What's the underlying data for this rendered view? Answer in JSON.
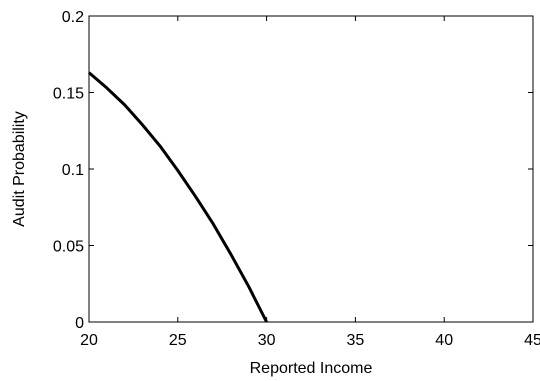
{
  "chart_data": {
    "type": "line",
    "title": "",
    "xlabel": "Reported Income",
    "ylabel": "Audit Probability",
    "xlim": [
      20,
      45
    ],
    "ylim": [
      0,
      0.2
    ],
    "xticks": [
      20,
      25,
      30,
      35,
      40,
      45
    ],
    "yticks": [
      0,
      0.05,
      0.1,
      0.15,
      0.2
    ],
    "xtick_labels": [
      "20",
      "25",
      "30",
      "35",
      "40",
      "45"
    ],
    "ytick_labels": [
      "0",
      "0.05",
      "0.1",
      "0.15",
      "0.2"
    ],
    "grid": false,
    "legend": "none",
    "series": [
      {
        "color": "#000000",
        "x": [
          20,
          21,
          22,
          23,
          24,
          25,
          26,
          27,
          28,
          29,
          30
        ],
        "y": [
          0.163,
          0.153,
          0.142,
          0.129,
          0.115,
          0.099,
          0.082,
          0.064,
          0.044,
          0.023,
          0.0
        ]
      }
    ]
  }
}
